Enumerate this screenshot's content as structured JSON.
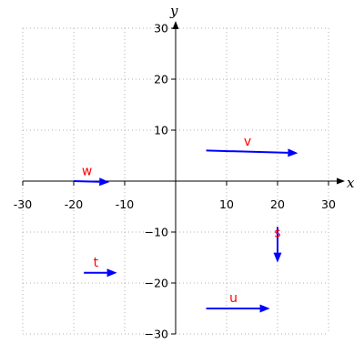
{
  "chart_data": {
    "type": "vector-plot",
    "xlabel": "x",
    "ylabel": "y",
    "xlim": [
      -30,
      30
    ],
    "ylim": [
      -30,
      30
    ],
    "x_ticks": [
      -30,
      -20,
      -10,
      10,
      20,
      30
    ],
    "y_ticks": [
      -30,
      -20,
      -10,
      10,
      20,
      30
    ],
    "x_tick_labels": [
      "-30",
      "-20",
      "-10",
      "10",
      "20",
      "30"
    ],
    "y_tick_labels": [
      "−30",
      "−20",
      "−10",
      "10",
      "20",
      "30"
    ],
    "grid": true,
    "vector_color": "#0000ff",
    "label_color": "#ff0000",
    "vectors": [
      {
        "name": "v",
        "x": 6,
        "y": 6,
        "dx": 18,
        "dy": -0.5
      },
      {
        "name": "w",
        "x": -20,
        "y": 0,
        "dx": 7,
        "dy": -0.2
      },
      {
        "name": "s",
        "x": 20,
        "y": -9,
        "dx": 0,
        "dy": -7
      },
      {
        "name": "t",
        "x": -18,
        "y": -18,
        "dx": 6.5,
        "dy": 0
      },
      {
        "name": "u",
        "x": 6,
        "y": -25,
        "dx": 12.5,
        "dy": 0
      }
    ]
  }
}
